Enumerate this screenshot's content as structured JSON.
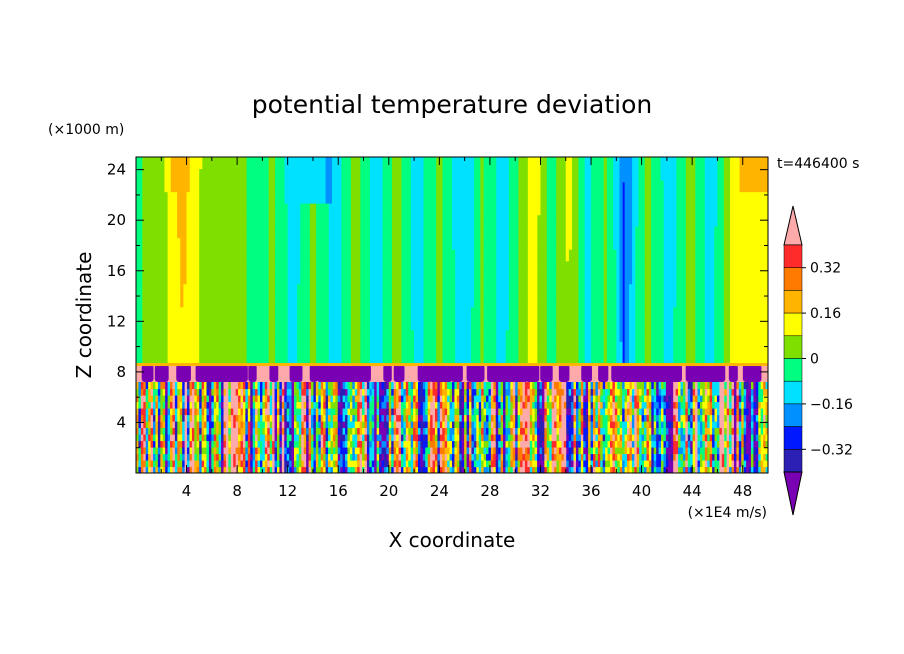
{
  "chart_data": {
    "type": "heatmap",
    "title": "potential temperature deviation",
    "xlabel": "X coordinate",
    "ylabel": "Z coordinate",
    "x_unit": "(×1E4 m/s)",
    "y_unit": "(×1000 m)",
    "time_label": "t=446400 s",
    "xlim": [
      0,
      50
    ],
    "ylim": [
      0,
      25
    ],
    "xticks": [
      4,
      8,
      12,
      16,
      20,
      24,
      28,
      32,
      36,
      40,
      44,
      48
    ],
    "yticks": [
      4,
      8,
      12,
      16,
      20,
      24
    ],
    "colorbar": {
      "levels": [
        -0.48,
        -0.4,
        -0.32,
        -0.24,
        -0.16,
        -0.08,
        0,
        0.08,
        0.16,
        0.24,
        0.32,
        0.4,
        0.48
      ],
      "colors": [
        "#7a00b4",
        "#2b1fb4",
        "#0018ff",
        "#0090ff",
        "#00e0ff",
        "#00ff80",
        "#7fe000",
        "#ffff00",
        "#ffb400",
        "#ff7a00",
        "#ff2a2a",
        "#ffaaaa"
      ],
      "extend": "both",
      "tick_labels": [
        "0.32",
        "0.16",
        "0",
        "−0.16",
        "−0.32"
      ]
    },
    "field_description": {
      "upper_layer": "z > 8.6: mostly near 0 (green) with yellow/orange at x≈2–4, 31–32, 48–50 and cyan patch near x≈13–16, z≈21–25",
      "inversion_band": "z≈7.2–8.6: strong positive (pink) band with purple blobs at base",
      "lower_layer": "z < 7.2: turbulent mix spanning full colour range"
    }
  }
}
